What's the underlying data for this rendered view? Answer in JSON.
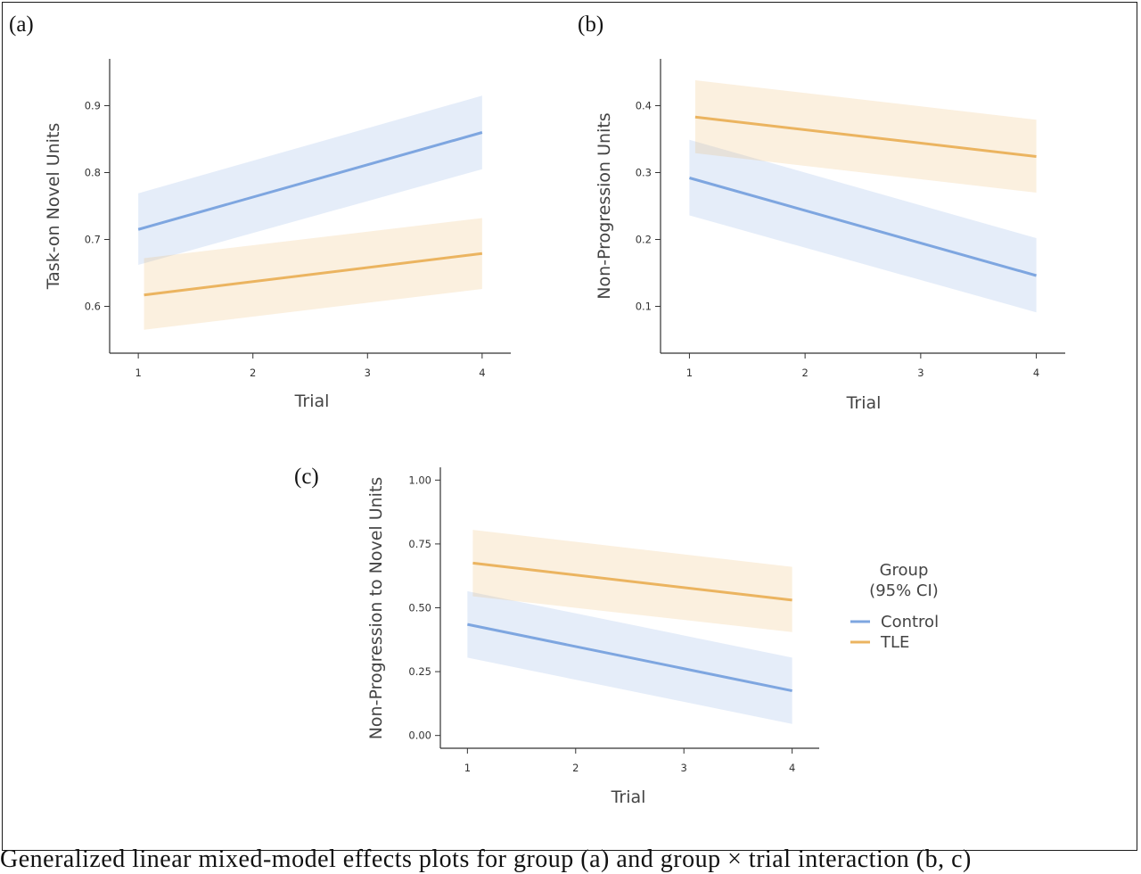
{
  "panel_labels": [
    "(a)",
    "(b)",
    "(c)"
  ],
  "colors": {
    "control": "#7ea6e0",
    "tle": "#ebb460"
  },
  "legend": {
    "title_line1": "Group",
    "title_line2": "(95% CI)",
    "entries": [
      "Control",
      "TLE"
    ]
  },
  "caption_fragment": "  Generalized linear mixed-model effects plots for group (a) and group × trial interaction (b, c)",
  "chart_data": [
    {
      "type": "line",
      "panel": "(a)",
      "xlabel": "Trial",
      "ylabel": "Task-on Novel Units",
      "xlim": [
        0.75,
        4.25
      ],
      "ylim": [
        0.53,
        0.97
      ],
      "xticks": [
        1,
        2,
        3,
        4
      ],
      "yticks": [
        0.6,
        0.7,
        0.8,
        0.9
      ],
      "ytick_labels": [
        "0.6",
        "0.7",
        "0.8",
        "0.9"
      ],
      "series": [
        {
          "name": "Control",
          "x": [
            1,
            4
          ],
          "y": [
            0.715,
            0.86
          ],
          "lower": [
            0.662,
            0.805
          ],
          "upper": [
            0.769,
            0.915
          ]
        },
        {
          "name": "TLE",
          "x": [
            1.05,
            4
          ],
          "y": [
            0.617,
            0.679
          ],
          "lower": [
            0.565,
            0.626
          ],
          "upper": [
            0.672,
            0.732
          ]
        }
      ]
    },
    {
      "type": "line",
      "panel": "(b)",
      "xlabel": "Trial",
      "ylabel": "Non-Progression Units",
      "xlim": [
        0.75,
        4.25
      ],
      "ylim": [
        0.03,
        0.47
      ],
      "xticks": [
        1,
        2,
        3,
        4
      ],
      "yticks": [
        0.1,
        0.2,
        0.3,
        0.4
      ],
      "ytick_labels": [
        "0.1",
        "0.2",
        "0.3",
        "0.4"
      ],
      "series": [
        {
          "name": "Control",
          "x": [
            1,
            4
          ],
          "y": [
            0.292,
            0.146
          ],
          "lower": [
            0.236,
            0.091
          ],
          "upper": [
            0.349,
            0.202
          ]
        },
        {
          "name": "TLE",
          "x": [
            1.05,
            4
          ],
          "y": [
            0.383,
            0.324
          ],
          "lower": [
            0.329,
            0.27
          ],
          "upper": [
            0.438,
            0.379
          ]
        }
      ]
    },
    {
      "type": "line",
      "panel": "(c)",
      "xlabel": "Trial",
      "ylabel": "Non-Progression to Novel Units",
      "xlim": [
        0.75,
        4.25
      ],
      "ylim": [
        -0.05,
        1.05
      ],
      "xticks": [
        1,
        2,
        3,
        4
      ],
      "yticks": [
        0,
        0.25,
        0.5,
        0.75,
        1.0
      ],
      "ytick_labels": [
        "0.00",
        "0.25",
        "0.50",
        "0.75",
        "1.00"
      ],
      "series": [
        {
          "name": "Control",
          "x": [
            1,
            4
          ],
          "y": [
            0.435,
            0.175
          ],
          "lower": [
            0.305,
            0.045
          ],
          "upper": [
            0.565,
            0.305
          ]
        },
        {
          "name": "TLE",
          "x": [
            1.05,
            4
          ],
          "y": [
            0.675,
            0.53
          ],
          "lower": [
            0.545,
            0.405
          ],
          "upper": [
            0.805,
            0.66
          ]
        }
      ]
    }
  ]
}
